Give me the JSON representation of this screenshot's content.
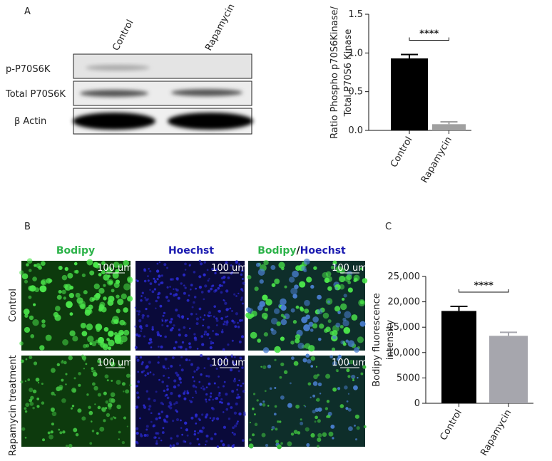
{
  "panel_a": {
    "label": "A",
    "lanes": [
      "Control",
      "Rapamycin"
    ],
    "rows": [
      "p-P70S6K",
      "Total P70S6K",
      "β Actin"
    ]
  },
  "panel_b": {
    "label": "B",
    "columns": [
      "Bodipy",
      "Hoechst"
    ],
    "merged": [
      "Bodipy",
      "/",
      "Hoechst"
    ],
    "rows": [
      "Control",
      "Rapamycin treatment"
    ],
    "scale_bar": "100 um"
  },
  "panel_c": {
    "label": "C"
  },
  "chart_data": [
    {
      "type": "bar",
      "ylabel": [
        "Ratio Phospho p70S6Kinase/",
        "Total P70S6 Kinase"
      ],
      "categories": [
        "Control",
        "Rapamycin"
      ],
      "values": [
        0.93,
        0.08
      ],
      "errors": [
        0.05,
        0.03
      ],
      "colors": [
        "#000000",
        "#a0a0a0"
      ],
      "ylim": [
        0,
        1.5
      ],
      "yticks": [
        {
          "value": 0,
          "label": "0.0"
        },
        0.5,
        {
          "value": 1,
          "label": "1.0"
        },
        1.5
      ],
      "significance": "****"
    },
    {
      "type": "bar",
      "ylabel": [
        "Bodipy fluorescence",
        "intensity"
      ],
      "categories": [
        "Control",
        "Rapamycin"
      ],
      "values": [
        18200,
        13300
      ],
      "errors": [
        900,
        700
      ],
      "colors": [
        "#000000",
        "#a6a6ad"
      ],
      "ylim": [
        0,
        25000
      ],
      "yticks": [
        0,
        5000,
        {
          "value": 10000,
          "label": "10,000"
        },
        {
          "value": 15000,
          "label": "15,000"
        },
        {
          "value": 20000,
          "label": "20,000"
        },
        {
          "value": 25000,
          "label": "25,000"
        }
      ],
      "significance": "****"
    }
  ]
}
